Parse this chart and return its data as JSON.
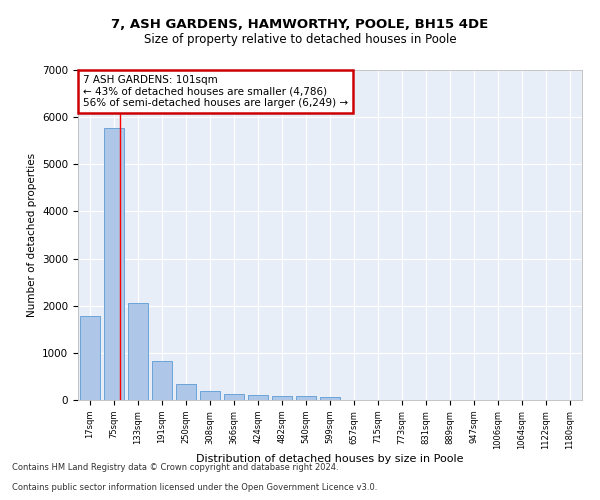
{
  "title1": "7, ASH GARDENS, HAMWORTHY, POOLE, BH15 4DE",
  "title2": "Size of property relative to detached houses in Poole",
  "xlabel": "Distribution of detached houses by size in Poole",
  "ylabel": "Number of detached properties",
  "categories": [
    "17sqm",
    "75sqm",
    "133sqm",
    "191sqm",
    "250sqm",
    "308sqm",
    "366sqm",
    "424sqm",
    "482sqm",
    "540sqm",
    "599sqm",
    "657sqm",
    "715sqm",
    "773sqm",
    "831sqm",
    "889sqm",
    "947sqm",
    "1006sqm",
    "1064sqm",
    "1122sqm",
    "1180sqm"
  ],
  "values": [
    1780,
    5780,
    2060,
    820,
    340,
    190,
    130,
    110,
    95,
    80,
    65,
    0,
    0,
    0,
    0,
    0,
    0,
    0,
    0,
    0,
    0
  ],
  "bar_color": "#aec6e8",
  "bar_edge_color": "#5b9bd5",
  "red_line_x": 1.27,
  "annotation_text": "7 ASH GARDENS: 101sqm\n← 43% of detached houses are smaller (4,786)\n56% of semi-detached houses are larger (6,249) →",
  "annotation_box_color": "#ffffff",
  "annotation_box_edge": "#cc0000",
  "ylim": [
    0,
    7000
  ],
  "yticks": [
    0,
    1000,
    2000,
    3000,
    4000,
    5000,
    6000,
    7000
  ],
  "plot_bg_color": "#e8eef7",
  "footer1": "Contains HM Land Registry data © Crown copyright and database right 2024.",
  "footer2": "Contains public sector information licensed under the Open Government Licence v3.0."
}
